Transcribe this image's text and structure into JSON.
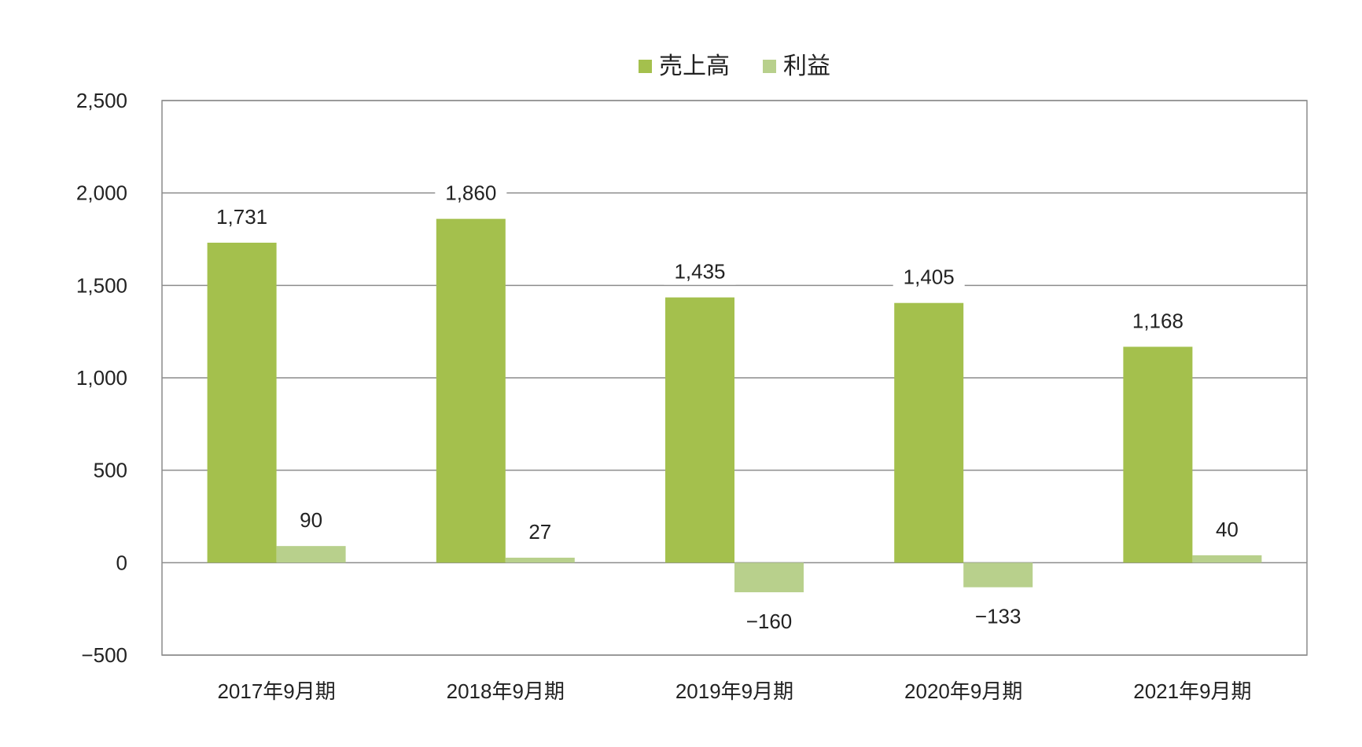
{
  "chart_data": {
    "type": "bar",
    "categories": [
      "2017年9月期",
      "2018年9月期",
      "2019年9月期",
      "2020年9月期",
      "2021年9月期"
    ],
    "series": [
      {
        "name": "売上高",
        "values": [
          1731,
          1860,
          1435,
          1405,
          1168
        ],
        "color": "#a4c04d"
      },
      {
        "name": "利益",
        "values": [
          90,
          27,
          -160,
          -133,
          40
        ],
        "color": "#b8d08c"
      }
    ],
    "data_labels": {
      "series_0": [
        "1,731",
        "1,860",
        "1,435",
        "1,405",
        "1,168"
      ],
      "series_1": [
        "90",
        "27",
        "−160",
        "−133",
        "40"
      ]
    },
    "y_ticks": [
      -500,
      0,
      500,
      1000,
      1500,
      2000,
      2500
    ],
    "y_tick_labels": [
      "−500",
      "0",
      "500",
      "1,000",
      "1,500",
      "2,000",
      "2,500"
    ],
    "ylim": [
      -500,
      2500
    ],
    "grid": true,
    "legend_position": "top-center",
    "gridline_color": "#8c8c8c",
    "frame_color": "#8c8c8c"
  }
}
